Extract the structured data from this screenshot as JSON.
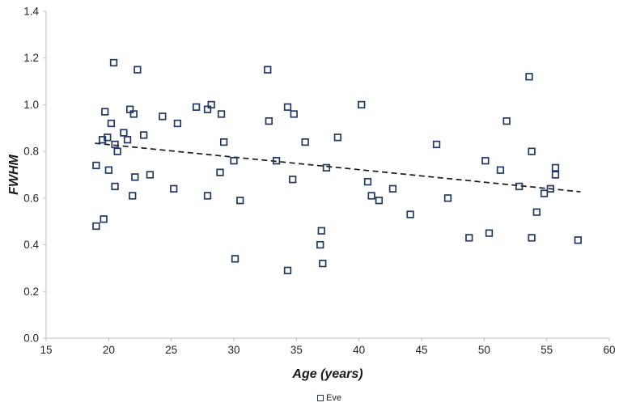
{
  "chart_data": {
    "type": "scatter",
    "title": "",
    "xlabel": "Age (years)",
    "ylabel": "FWHM",
    "xlim": [
      15,
      60
    ],
    "ylim": [
      0.0,
      1.4
    ],
    "xtick_step": 5,
    "ytick_step": 0.2,
    "grid": false,
    "legend": {
      "position": "bottom-center",
      "label": "Eve"
    },
    "colors": {
      "axis": "#BFBFBF",
      "tick_label": "#262626",
      "marker": "#203864",
      "trendline": "#1a1a1a"
    },
    "series": [
      {
        "name": "Eve",
        "marker": "open-square",
        "color": "#203864",
        "points": [
          [
            19.0,
            0.48
          ],
          [
            19.6,
            0.51
          ],
          [
            19.0,
            0.74
          ],
          [
            20.0,
            0.72
          ],
          [
            20.5,
            0.65
          ],
          [
            21.9,
            0.61
          ],
          [
            22.1,
            0.69
          ],
          [
            23.3,
            0.7
          ],
          [
            25.2,
            0.64
          ],
          [
            27.9,
            0.61
          ],
          [
            28.9,
            0.71
          ],
          [
            19.5,
            0.85
          ],
          [
            19.9,
            0.86
          ],
          [
            20.2,
            0.92
          ],
          [
            19.7,
            0.97
          ],
          [
            20.4,
            1.18
          ],
          [
            22.3,
            1.15
          ],
          [
            21.7,
            0.98
          ],
          [
            22.0,
            0.96
          ],
          [
            21.2,
            0.88
          ],
          [
            21.5,
            0.85
          ],
          [
            20.5,
            0.83
          ],
          [
            20.7,
            0.8
          ],
          [
            22.8,
            0.87
          ],
          [
            24.3,
            0.95
          ],
          [
            25.5,
            0.92
          ],
          [
            27.0,
            0.99
          ],
          [
            27.9,
            0.98
          ],
          [
            28.2,
            1.0
          ],
          [
            29.0,
            0.96
          ],
          [
            29.2,
            0.84
          ],
          [
            30.0,
            0.76
          ],
          [
            30.5,
            0.59
          ],
          [
            30.1,
            0.34
          ],
          [
            32.7,
            1.15
          ],
          [
            32.8,
            0.93
          ],
          [
            33.4,
            0.76
          ],
          [
            34.3,
            0.29
          ],
          [
            34.3,
            0.99
          ],
          [
            34.8,
            0.96
          ],
          [
            34.7,
            0.68
          ],
          [
            35.7,
            0.84
          ],
          [
            37.0,
            0.46
          ],
          [
            36.9,
            0.4
          ],
          [
            37.1,
            0.32
          ],
          [
            37.4,
            0.73
          ],
          [
            38.3,
            0.86
          ],
          [
            40.2,
            1.0
          ],
          [
            40.7,
            0.67
          ],
          [
            41.0,
            0.61
          ],
          [
            41.6,
            0.59
          ],
          [
            42.7,
            0.64
          ],
          [
            44.1,
            0.53
          ],
          [
            46.2,
            0.83
          ],
          [
            47.1,
            0.6
          ],
          [
            48.8,
            0.43
          ],
          [
            50.1,
            0.76
          ],
          [
            50.4,
            0.45
          ],
          [
            51.3,
            0.72
          ],
          [
            51.8,
            0.93
          ],
          [
            52.8,
            0.65
          ],
          [
            53.6,
            1.12
          ],
          [
            53.8,
            0.8
          ],
          [
            53.8,
            0.43
          ],
          [
            54.2,
            0.54
          ],
          [
            54.8,
            0.62
          ],
          [
            55.3,
            0.64
          ],
          [
            55.7,
            0.73
          ],
          [
            55.7,
            0.7
          ],
          [
            57.5,
            0.42
          ]
        ]
      }
    ],
    "trendline": {
      "style": "dashed",
      "color": "#1a1a1a",
      "x1": 18.9,
      "y1": 0.835,
      "x2": 57.7,
      "y2": 0.627
    }
  }
}
